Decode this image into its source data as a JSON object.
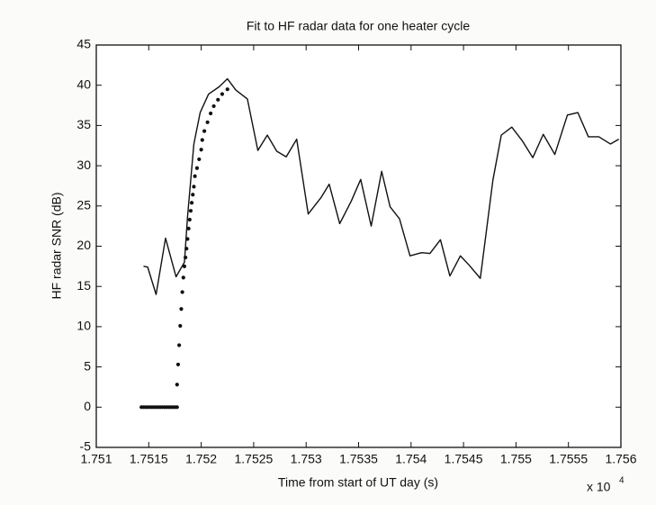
{
  "chart_data": {
    "type": "line",
    "title": "Fit to HF radar data for one heater cycle",
    "xlabel": "Time from start of UT day (s)",
    "ylabel": "HF radar SNR (dB)",
    "x_multiplier": "x 10",
    "x_multiplier_exponent": "4",
    "xlim": [
      1.751,
      1.756
    ],
    "xticks": [
      1.751,
      1.7515,
      1.752,
      1.7525,
      1.753,
      1.7535,
      1.754,
      1.7545,
      1.755,
      1.7555,
      1.756
    ],
    "ylim": [
      -5,
      45
    ],
    "yticks": [
      -5,
      0,
      5,
      10,
      15,
      20,
      25,
      30,
      35,
      40,
      45
    ],
    "grid": false,
    "series": [
      {
        "style": "line",
        "color": "#111111",
        "x": [
          1.75145,
          1.75149,
          1.75157,
          1.75166,
          1.75176,
          1.75184,
          1.75187,
          1.75193,
          1.75199,
          1.75207,
          1.75217,
          1.75225,
          1.75233,
          1.75244,
          1.75254,
          1.75263,
          1.75272,
          1.75281,
          1.75291,
          1.75302,
          1.75314,
          1.75322,
          1.75332,
          1.75343,
          1.75352,
          1.75362,
          1.75372,
          1.7538,
          1.75389,
          1.75399,
          1.7541,
          1.75418,
          1.75428,
          1.75437,
          1.75447,
          1.75455,
          1.75466,
          1.75478,
          1.75486,
          1.75496,
          1.75506,
          1.75516,
          1.75526,
          1.75537,
          1.75549,
          1.75559,
          1.75569,
          1.75579,
          1.7559,
          1.75598
        ],
        "values": [
          17.5,
          17.4,
          14,
          21,
          16.2,
          18,
          23.7,
          32.7,
          36.6,
          38.9,
          39.8,
          40.8,
          39.4,
          38.3,
          31.9,
          33.8,
          31.8,
          31.1,
          33.3,
          24,
          26,
          27.7,
          22.8,
          25.6,
          28.3,
          22.5,
          29.3,
          24.9,
          23.4,
          18.8,
          19.2,
          19.1,
          20.8,
          16.3,
          18.8,
          17.7,
          16,
          28.2,
          33.8,
          34.8,
          33.1,
          31,
          33.9,
          31.4,
          36.3,
          36.6,
          33.6,
          33.6,
          32.7,
          33.3
        ]
      },
      {
        "style": "dots",
        "color": "#111111",
        "x": [
          1.75143,
          1.75145,
          1.75147,
          1.75149,
          1.75151,
          1.75153,
          1.75155,
          1.75157,
          1.75159,
          1.75161,
          1.75163,
          1.75165,
          1.75167,
          1.75169,
          1.75171,
          1.75173,
          1.75175,
          1.75177,
          1.75177,
          1.75178,
          1.75179,
          1.7518,
          1.75181,
          1.75182,
          1.75183,
          1.75184,
          1.75185,
          1.75186,
          1.75187,
          1.75188,
          1.75189,
          1.7519,
          1.75191,
          1.75192,
          1.75193,
          1.75194,
          1.75196,
          1.75198,
          1.752,
          1.75201,
          1.75203,
          1.75206,
          1.75209,
          1.75212,
          1.75216,
          1.7522,
          1.75225
        ],
        "values": [
          0,
          0,
          0,
          0,
          0,
          0,
          0,
          0,
          0,
          0,
          0,
          0,
          0,
          0,
          0,
          0,
          0,
          0,
          2.8,
          5.3,
          7.7,
          10.1,
          12.2,
          14.3,
          16.1,
          17.5,
          18.6,
          19.7,
          20.9,
          22.2,
          23.3,
          24.4,
          25.4,
          26.4,
          27.4,
          28.7,
          29.7,
          30.8,
          32,
          33.2,
          34.3,
          35.4,
          36.5,
          37.4,
          38.2,
          38.9,
          39.5
        ]
      }
    ]
  }
}
